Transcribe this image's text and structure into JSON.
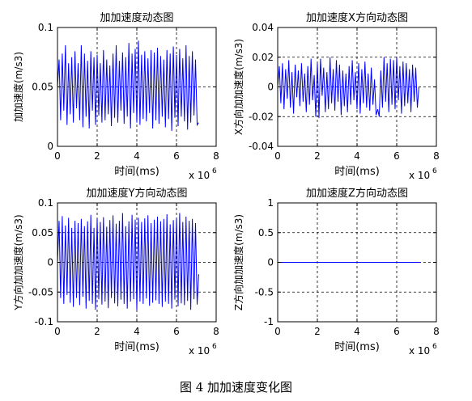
{
  "caption": "图 4  加加速度变化图",
  "chart_data": [
    {
      "type": "line",
      "title": "加加速度动态图",
      "xlabel": "时间(ms)",
      "ylabel": "加加速度(m/s3)",
      "x_exponent_label": "x 10",
      "x_exponent": "6",
      "xlim": [
        0,
        8
      ],
      "ylim": [
        0,
        0.1
      ],
      "xticks": [
        "0",
        "2",
        "4",
        "6",
        "8"
      ],
      "yticks": [
        "0",
        "0.05",
        "0.1"
      ],
      "ytick_values": [
        0,
        0.05,
        0.1
      ],
      "grid": true,
      "color": "#0000ff",
      "x": [
        0.0,
        0.08,
        0.16,
        0.24,
        0.32,
        0.4,
        0.48,
        0.56,
        0.64,
        0.72,
        0.8,
        0.88,
        0.96,
        1.04,
        1.12,
        1.2,
        1.28,
        1.36,
        1.44,
        1.52,
        1.6,
        1.68,
        1.76,
        1.84,
        1.92,
        2.0,
        2.08,
        2.16,
        2.24,
        2.32,
        2.4,
        2.48,
        2.56,
        2.64,
        2.72,
        2.8,
        2.88,
        2.96,
        3.04,
        3.12,
        3.2,
        3.28,
        3.36,
        3.44,
        3.52,
        3.6,
        3.68,
        3.76,
        3.84,
        3.92,
        4.0,
        4.08,
        4.16,
        4.24,
        4.32,
        4.4,
        4.48,
        4.56,
        4.64,
        4.72,
        4.8,
        4.88,
        4.96,
        5.04,
        5.12,
        5.2,
        5.28,
        5.36,
        5.44,
        5.52,
        5.6,
        5.68,
        5.76,
        5.84,
        5.92,
        6.0,
        6.08,
        6.16,
        6.24,
        6.32,
        6.4,
        6.48,
        6.56,
        6.64,
        6.72,
        6.8,
        6.88,
        6.96,
        7.04,
        7.12
      ],
      "values": [
        0.05,
        0.073,
        0.022,
        0.078,
        0.03,
        0.085,
        0.018,
        0.07,
        0.027,
        0.075,
        0.02,
        0.08,
        0.032,
        0.07,
        0.022,
        0.085,
        0.016,
        0.078,
        0.025,
        0.072,
        0.015,
        0.08,
        0.03,
        0.075,
        0.018,
        0.077,
        0.026,
        0.07,
        0.02,
        0.081,
        0.022,
        0.073,
        0.027,
        0.068,
        0.017,
        0.078,
        0.024,
        0.085,
        0.02,
        0.072,
        0.03,
        0.079,
        0.019,
        0.075,
        0.025,
        0.087,
        0.015,
        0.078,
        0.028,
        0.082,
        0.02,
        0.089,
        0.018,
        0.077,
        0.023,
        0.08,
        0.021,
        0.074,
        0.028,
        0.081,
        0.015,
        0.079,
        0.022,
        0.083,
        0.019,
        0.076,
        0.025,
        0.073,
        0.016,
        0.081,
        0.023,
        0.078,
        0.013,
        0.084,
        0.024,
        0.077,
        0.017,
        0.082,
        0.025,
        0.074,
        0.021,
        0.085,
        0.014,
        0.076,
        0.02,
        0.08,
        0.026,
        0.073,
        0.018,
        0.02
      ]
    },
    {
      "type": "line",
      "title": "加加速度X方向动态图",
      "xlabel": "时间(ms)",
      "ylabel": "X方向加加速度(m/s3)",
      "x_exponent_label": "x 10",
      "x_exponent": "6",
      "xlim": [
        0,
        8
      ],
      "ylim": [
        -0.04,
        0.04
      ],
      "xticks": [
        "0",
        "2",
        "4",
        "6",
        "8"
      ],
      "yticks": [
        "-0.04",
        "-0.02",
        "0",
        "0.02",
        "0.04"
      ],
      "ytick_values": [
        -0.04,
        -0.02,
        0,
        0.02,
        0.04
      ],
      "grid": true,
      "color": "#0000ff",
      "x": [
        0.0,
        0.08,
        0.16,
        0.24,
        0.32,
        0.4,
        0.48,
        0.56,
        0.64,
        0.72,
        0.8,
        0.88,
        0.96,
        1.04,
        1.12,
        1.2,
        1.28,
        1.36,
        1.44,
        1.52,
        1.6,
        1.68,
        1.76,
        1.84,
        1.92,
        2.0,
        2.08,
        2.16,
        2.24,
        2.32,
        2.4,
        2.48,
        2.56,
        2.64,
        2.72,
        2.8,
        2.88,
        2.96,
        3.04,
        3.12,
        3.2,
        3.28,
        3.36,
        3.44,
        3.52,
        3.6,
        3.68,
        3.76,
        3.84,
        3.92,
        4.0,
        4.08,
        4.16,
        4.24,
        4.32,
        4.4,
        4.48,
        4.56,
        4.64,
        4.72,
        4.8,
        4.88,
        4.96,
        5.04,
        5.12,
        5.2,
        5.28,
        5.36,
        5.44,
        5.52,
        5.6,
        5.68,
        5.76,
        5.84,
        5.92,
        6.0,
        6.08,
        6.16,
        6.24,
        6.32,
        6.4,
        6.48,
        6.56,
        6.64,
        6.72,
        6.8,
        6.88,
        6.96,
        7.04,
        7.12
      ],
      "values": [
        0.0,
        0.014,
        -0.011,
        0.016,
        -0.015,
        0.012,
        -0.008,
        0.018,
        -0.014,
        0.01,
        -0.018,
        0.015,
        -0.007,
        0.011,
        -0.013,
        0.016,
        -0.01,
        0.009,
        -0.017,
        0.014,
        -0.012,
        0.019,
        -0.009,
        0.008,
        -0.02,
        0.016,
        -0.021,
        0.019,
        -0.006,
        0.013,
        -0.017,
        0.01,
        -0.015,
        0.02,
        -0.011,
        0.012,
        -0.016,
        0.018,
        -0.01,
        0.015,
        -0.019,
        0.011,
        -0.013,
        0.009,
        -0.017,
        0.014,
        -0.012,
        0.018,
        -0.009,
        0.01,
        -0.015,
        0.016,
        -0.018,
        0.012,
        -0.011,
        0.017,
        -0.014,
        0.009,
        -0.016,
        0.013,
        -0.012,
        0.005,
        -0.019,
        -0.015,
        -0.02,
        0.011,
        -0.014,
        0.02,
        -0.01,
        0.016,
        -0.017,
        0.019,
        -0.012,
        0.018,
        -0.015,
        0.02,
        -0.009,
        0.014,
        -0.018,
        0.017,
        -0.013,
        0.016,
        -0.011,
        0.012,
        -0.017,
        0.015,
        -0.01,
        0.013,
        -0.014,
        0.0
      ]
    },
    {
      "type": "line",
      "title": "加加速度Y方向动态图",
      "xlabel": "时间(ms)",
      "ylabel": "Y方向加加速度(m/s3)",
      "x_exponent_label": "x 10",
      "x_exponent": "6",
      "xlim": [
        0,
        8
      ],
      "ylim": [
        -0.1,
        0.1
      ],
      "xticks": [
        "0",
        "2",
        "4",
        "6",
        "8"
      ],
      "yticks": [
        "-0.1",
        "-0.05",
        "0",
        "0.05",
        "0.1"
      ],
      "ytick_values": [
        -0.1,
        -0.05,
        0,
        0.05,
        0.1
      ],
      "grid": true,
      "color": "#0000ff",
      "x": [
        0.0,
        0.08,
        0.16,
        0.24,
        0.32,
        0.4,
        0.48,
        0.56,
        0.64,
        0.72,
        0.8,
        0.88,
        0.96,
        1.04,
        1.12,
        1.2,
        1.28,
        1.36,
        1.44,
        1.52,
        1.6,
        1.68,
        1.76,
        1.84,
        1.92,
        2.0,
        2.08,
        2.16,
        2.24,
        2.32,
        2.4,
        2.48,
        2.56,
        2.64,
        2.72,
        2.8,
        2.88,
        2.96,
        3.04,
        3.12,
        3.2,
        3.28,
        3.36,
        3.44,
        3.52,
        3.6,
        3.68,
        3.76,
        3.84,
        3.92,
        4.0,
        4.08,
        4.16,
        4.24,
        4.32,
        4.4,
        4.48,
        4.56,
        4.64,
        4.72,
        4.8,
        4.88,
        4.96,
        5.04,
        5.12,
        5.2,
        5.28,
        5.36,
        5.44,
        5.52,
        5.6,
        5.68,
        5.76,
        5.84,
        5.92,
        6.0,
        6.08,
        6.16,
        6.24,
        6.32,
        6.4,
        6.48,
        6.56,
        6.64,
        6.72,
        6.8,
        6.88,
        6.96,
        7.04,
        7.12
      ],
      "values": [
        0.0,
        0.07,
        -0.06,
        0.078,
        -0.07,
        0.062,
        -0.055,
        0.075,
        -0.068,
        0.058,
        -0.075,
        0.07,
        -0.06,
        0.066,
        -0.072,
        0.073,
        -0.058,
        0.061,
        -0.078,
        0.069,
        -0.065,
        0.08,
        -0.07,
        0.058,
        -0.08,
        0.074,
        -0.062,
        0.068,
        -0.071,
        0.076,
        -0.066,
        0.06,
        -0.077,
        0.071,
        -0.06,
        0.079,
        -0.069,
        0.065,
        -0.074,
        0.07,
        -0.063,
        0.083,
        -0.07,
        0.061,
        -0.078,
        0.069,
        -0.066,
        0.08,
        -0.062,
        0.072,
        -0.08,
        0.075,
        -0.066,
        0.068,
        -0.07,
        0.074,
        -0.061,
        0.079,
        -0.073,
        0.066,
        -0.068,
        0.072,
        -0.064,
        0.077,
        -0.07,
        0.069,
        -0.075,
        0.073,
        -0.066,
        0.081,
        -0.07,
        0.064,
        -0.078,
        0.071,
        -0.063,
        0.075,
        -0.074,
        0.083,
        -0.069,
        0.068,
        -0.072,
        0.077,
        -0.065,
        0.07,
        -0.08,
        0.073,
        -0.062,
        0.066,
        -0.071,
        -0.02
      ]
    },
    {
      "type": "line",
      "title": "加加速度Z方向动态图",
      "xlabel": "时间(ms)",
      "ylabel": "Z方向加加速度(m/s3)",
      "x_exponent_label": "x 10",
      "x_exponent": "6",
      "xlim": [
        0,
        8
      ],
      "ylim": [
        -1,
        1
      ],
      "xticks": [
        "0",
        "2",
        "4",
        "6",
        "8"
      ],
      "yticks": [
        "-1",
        "-0.5",
        "0",
        "0.5",
        "1"
      ],
      "ytick_values": [
        -1,
        -0.5,
        0,
        0.5,
        1
      ],
      "grid": true,
      "color": "#0000ff",
      "x": [
        0.0,
        7.2
      ],
      "values": [
        0,
        0
      ]
    }
  ]
}
